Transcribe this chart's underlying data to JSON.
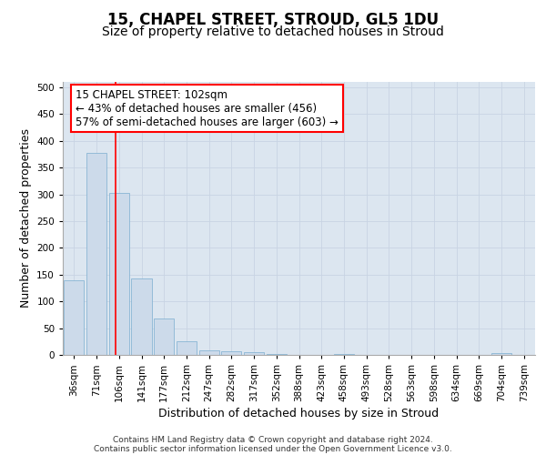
{
  "title": "15, CHAPEL STREET, STROUD, GL5 1DU",
  "subtitle": "Size of property relative to detached houses in Stroud",
  "xlabel": "Distribution of detached houses by size in Stroud",
  "ylabel": "Number of detached properties",
  "categories": [
    "36sqm",
    "71sqm",
    "106sqm",
    "141sqm",
    "177sqm",
    "212sqm",
    "247sqm",
    "282sqm",
    "317sqm",
    "352sqm",
    "388sqm",
    "423sqm",
    "458sqm",
    "493sqm",
    "528sqm",
    "563sqm",
    "598sqm",
    "634sqm",
    "669sqm",
    "704sqm",
    "739sqm"
  ],
  "values": [
    140,
    378,
    303,
    143,
    68,
    25,
    9,
    7,
    5,
    2,
    0,
    0,
    2,
    0,
    0,
    0,
    0,
    0,
    0,
    3,
    0
  ],
  "bar_color": "#ccdaea",
  "bar_edge_color": "#7aaed0",
  "grid_color": "#c8d4e3",
  "background_color": "#dce6f0",
  "property_line_x": 1.86,
  "annotation_text": "15 CHAPEL STREET: 102sqm\n← 43% of detached houses are smaller (456)\n57% of semi-detached houses are larger (603) →",
  "annotation_box_facecolor": "white",
  "annotation_box_edgecolor": "red",
  "ylim": [
    0,
    510
  ],
  "yticks": [
    0,
    50,
    100,
    150,
    200,
    250,
    300,
    350,
    400,
    450,
    500
  ],
  "footer_line1": "Contains HM Land Registry data © Crown copyright and database right 2024.",
  "footer_line2": "Contains public sector information licensed under the Open Government Licence v3.0.",
  "title_fontsize": 12,
  "subtitle_fontsize": 10,
  "axis_label_fontsize": 9,
  "tick_fontsize": 7.5,
  "annotation_fontsize": 8.5,
  "footer_fontsize": 6.5
}
